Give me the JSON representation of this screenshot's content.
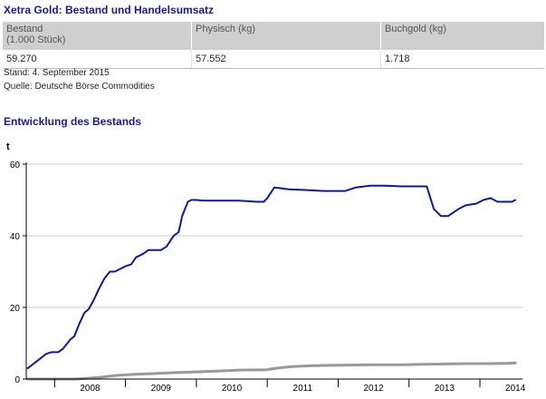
{
  "header": {
    "title": "Xetra Gold: Bestand und Handelsumsatz"
  },
  "table": {
    "col1_line1": "Bestand",
    "col1_line2": "(1.000 Stück)",
    "col2": "Physisch (kg)",
    "col3": "Buchgold (kg)",
    "val1": "59.270",
    "val2": "57.552",
    "val3": "1.718"
  },
  "stand": "Stand: 4. September 2015",
  "quelle": "Quelle: Deutsche Börse Commodities",
  "section_title": "Entwicklung des Bestands",
  "chart_data": {
    "type": "line",
    "ylabel": "t",
    "ylim": [
      0,
      60
    ],
    "xlim": [
      2007.6,
      2014.6
    ],
    "yticks": [
      0,
      20,
      40,
      60
    ],
    "xtick_labels": [
      "2008",
      "2009",
      "2010",
      "2011",
      "2012",
      "2013",
      "2014"
    ],
    "colors": {
      "series1": "#0f1a8c",
      "series2": "#999999",
      "axis": "#000000",
      "grid": "#c8c8c8"
    },
    "series": [
      {
        "x": [
          2007.62,
          2007.75,
          2007.88,
          2007.95,
          2008.05,
          2008.12,
          2008.22,
          2008.28,
          2008.35,
          2008.42,
          2008.48,
          2008.55,
          2008.62,
          2008.7,
          2008.78,
          2008.85,
          2008.9,
          2009.0,
          2009.08,
          2009.15,
          2009.25,
          2009.32,
          2009.42,
          2009.5,
          2009.58,
          2009.68,
          2009.75,
          2009.8,
          2009.88,
          2009.93,
          2010.0,
          2010.1,
          2010.3,
          2010.6,
          2010.85,
          2010.95,
          2011.0,
          2011.1,
          2011.3,
          2011.5,
          2011.8,
          2012.0,
          2012.1,
          2012.25,
          2012.45,
          2012.65,
          2012.9,
          2013.25,
          2013.35,
          2013.45,
          2013.55,
          2013.7,
          2013.8,
          2013.95,
          2014.05,
          2014.15,
          2014.25,
          2014.35,
          2014.45,
          2014.5
        ],
        "values": [
          3,
          5,
          7,
          7.5,
          7.5,
          8.5,
          11,
          12,
          15.5,
          18.5,
          19.5,
          22,
          25,
          28,
          30,
          30,
          30.5,
          31.5,
          32,
          34,
          35,
          36,
          36,
          36,
          37,
          40,
          41,
          45.5,
          49.5,
          50,
          50,
          49.8,
          49.8,
          49.8,
          49.5,
          49.5,
          50.5,
          53.5,
          53,
          52.8,
          52.5,
          52.5,
          52.5,
          53.5,
          54,
          54,
          53.8,
          53.8,
          47.5,
          45.5,
          45.5,
          47.5,
          48.5,
          49,
          50,
          50.5,
          49.5,
          49.5,
          49.5,
          50
        ]
      },
      {
        "x": [
          2007.62,
          2008.3,
          2008.45,
          2008.65,
          2008.85,
          2009.1,
          2009.35,
          2009.7,
          2010.0,
          2010.4,
          2010.6,
          2011.0,
          2011.05,
          2011.2,
          2011.35,
          2011.6,
          2011.8,
          2012.1,
          2012.5,
          2012.9,
          2013.2,
          2013.5,
          2013.8,
          2014.1,
          2014.4,
          2014.5
        ],
        "values": [
          0,
          0,
          0.2,
          0.5,
          1,
          1.3,
          1.5,
          1.8,
          2,
          2.3,
          2.5,
          2.6,
          2.8,
          3.2,
          3.5,
          3.7,
          3.8,
          3.9,
          4,
          4,
          4.1,
          4.2,
          4.3,
          4.3,
          4.4,
          4.5
        ]
      }
    ]
  }
}
